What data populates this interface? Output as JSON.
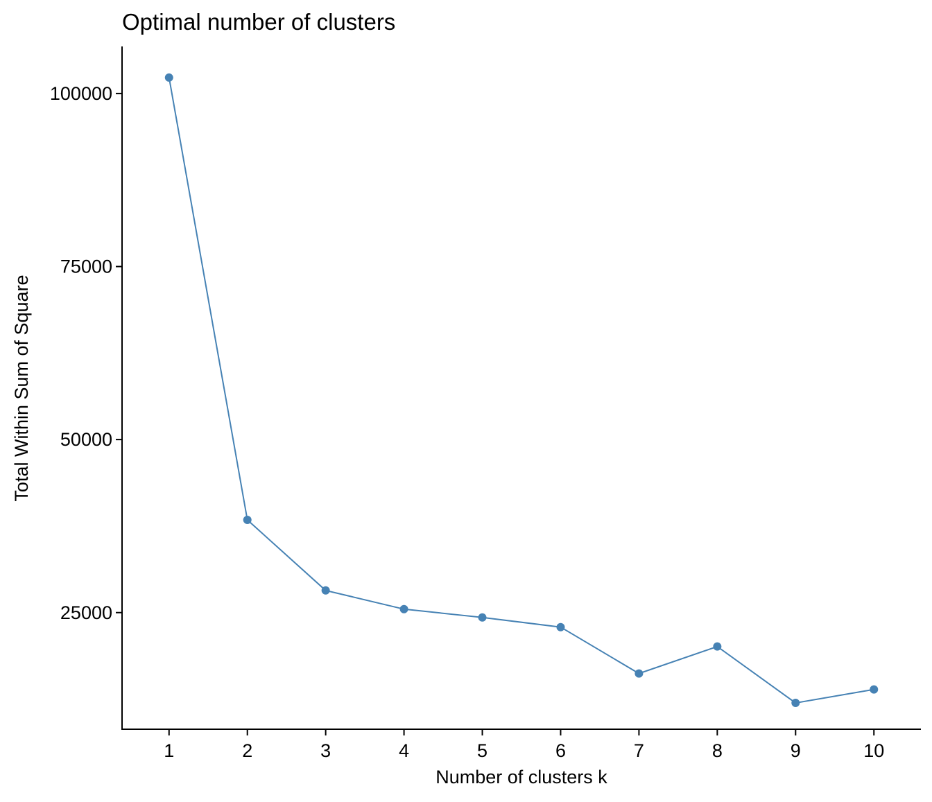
{
  "chart_data": {
    "type": "line",
    "title": "Optimal number of clusters",
    "xlabel": "Number of clusters k",
    "ylabel": "Total Within Sum of Square",
    "x": [
      1,
      2,
      3,
      4,
      5,
      6,
      7,
      8,
      9,
      10
    ],
    "series": [
      {
        "values": [
          102300,
          38400,
          28200,
          25500,
          24300,
          22900,
          16200,
          20100,
          11950,
          13900
        ]
      }
    ],
    "x_ticks": [
      "1",
      "2",
      "3",
      "4",
      "5",
      "6",
      "7",
      "8",
      "9",
      "10"
    ],
    "y_ticks": [
      25000,
      50000,
      75000,
      100000
    ],
    "y_tick_labels": [
      "25000",
      "50000",
      "75000",
      "100000"
    ],
    "xlim": [
      0.4,
      10.6
    ],
    "ylim": [
      8150,
      106800
    ],
    "grid": false,
    "legend": "none",
    "colors": {
      "series": "#4682B4",
      "axis": "#000000",
      "text": "#000000",
      "background": "#FFFFFF"
    }
  }
}
